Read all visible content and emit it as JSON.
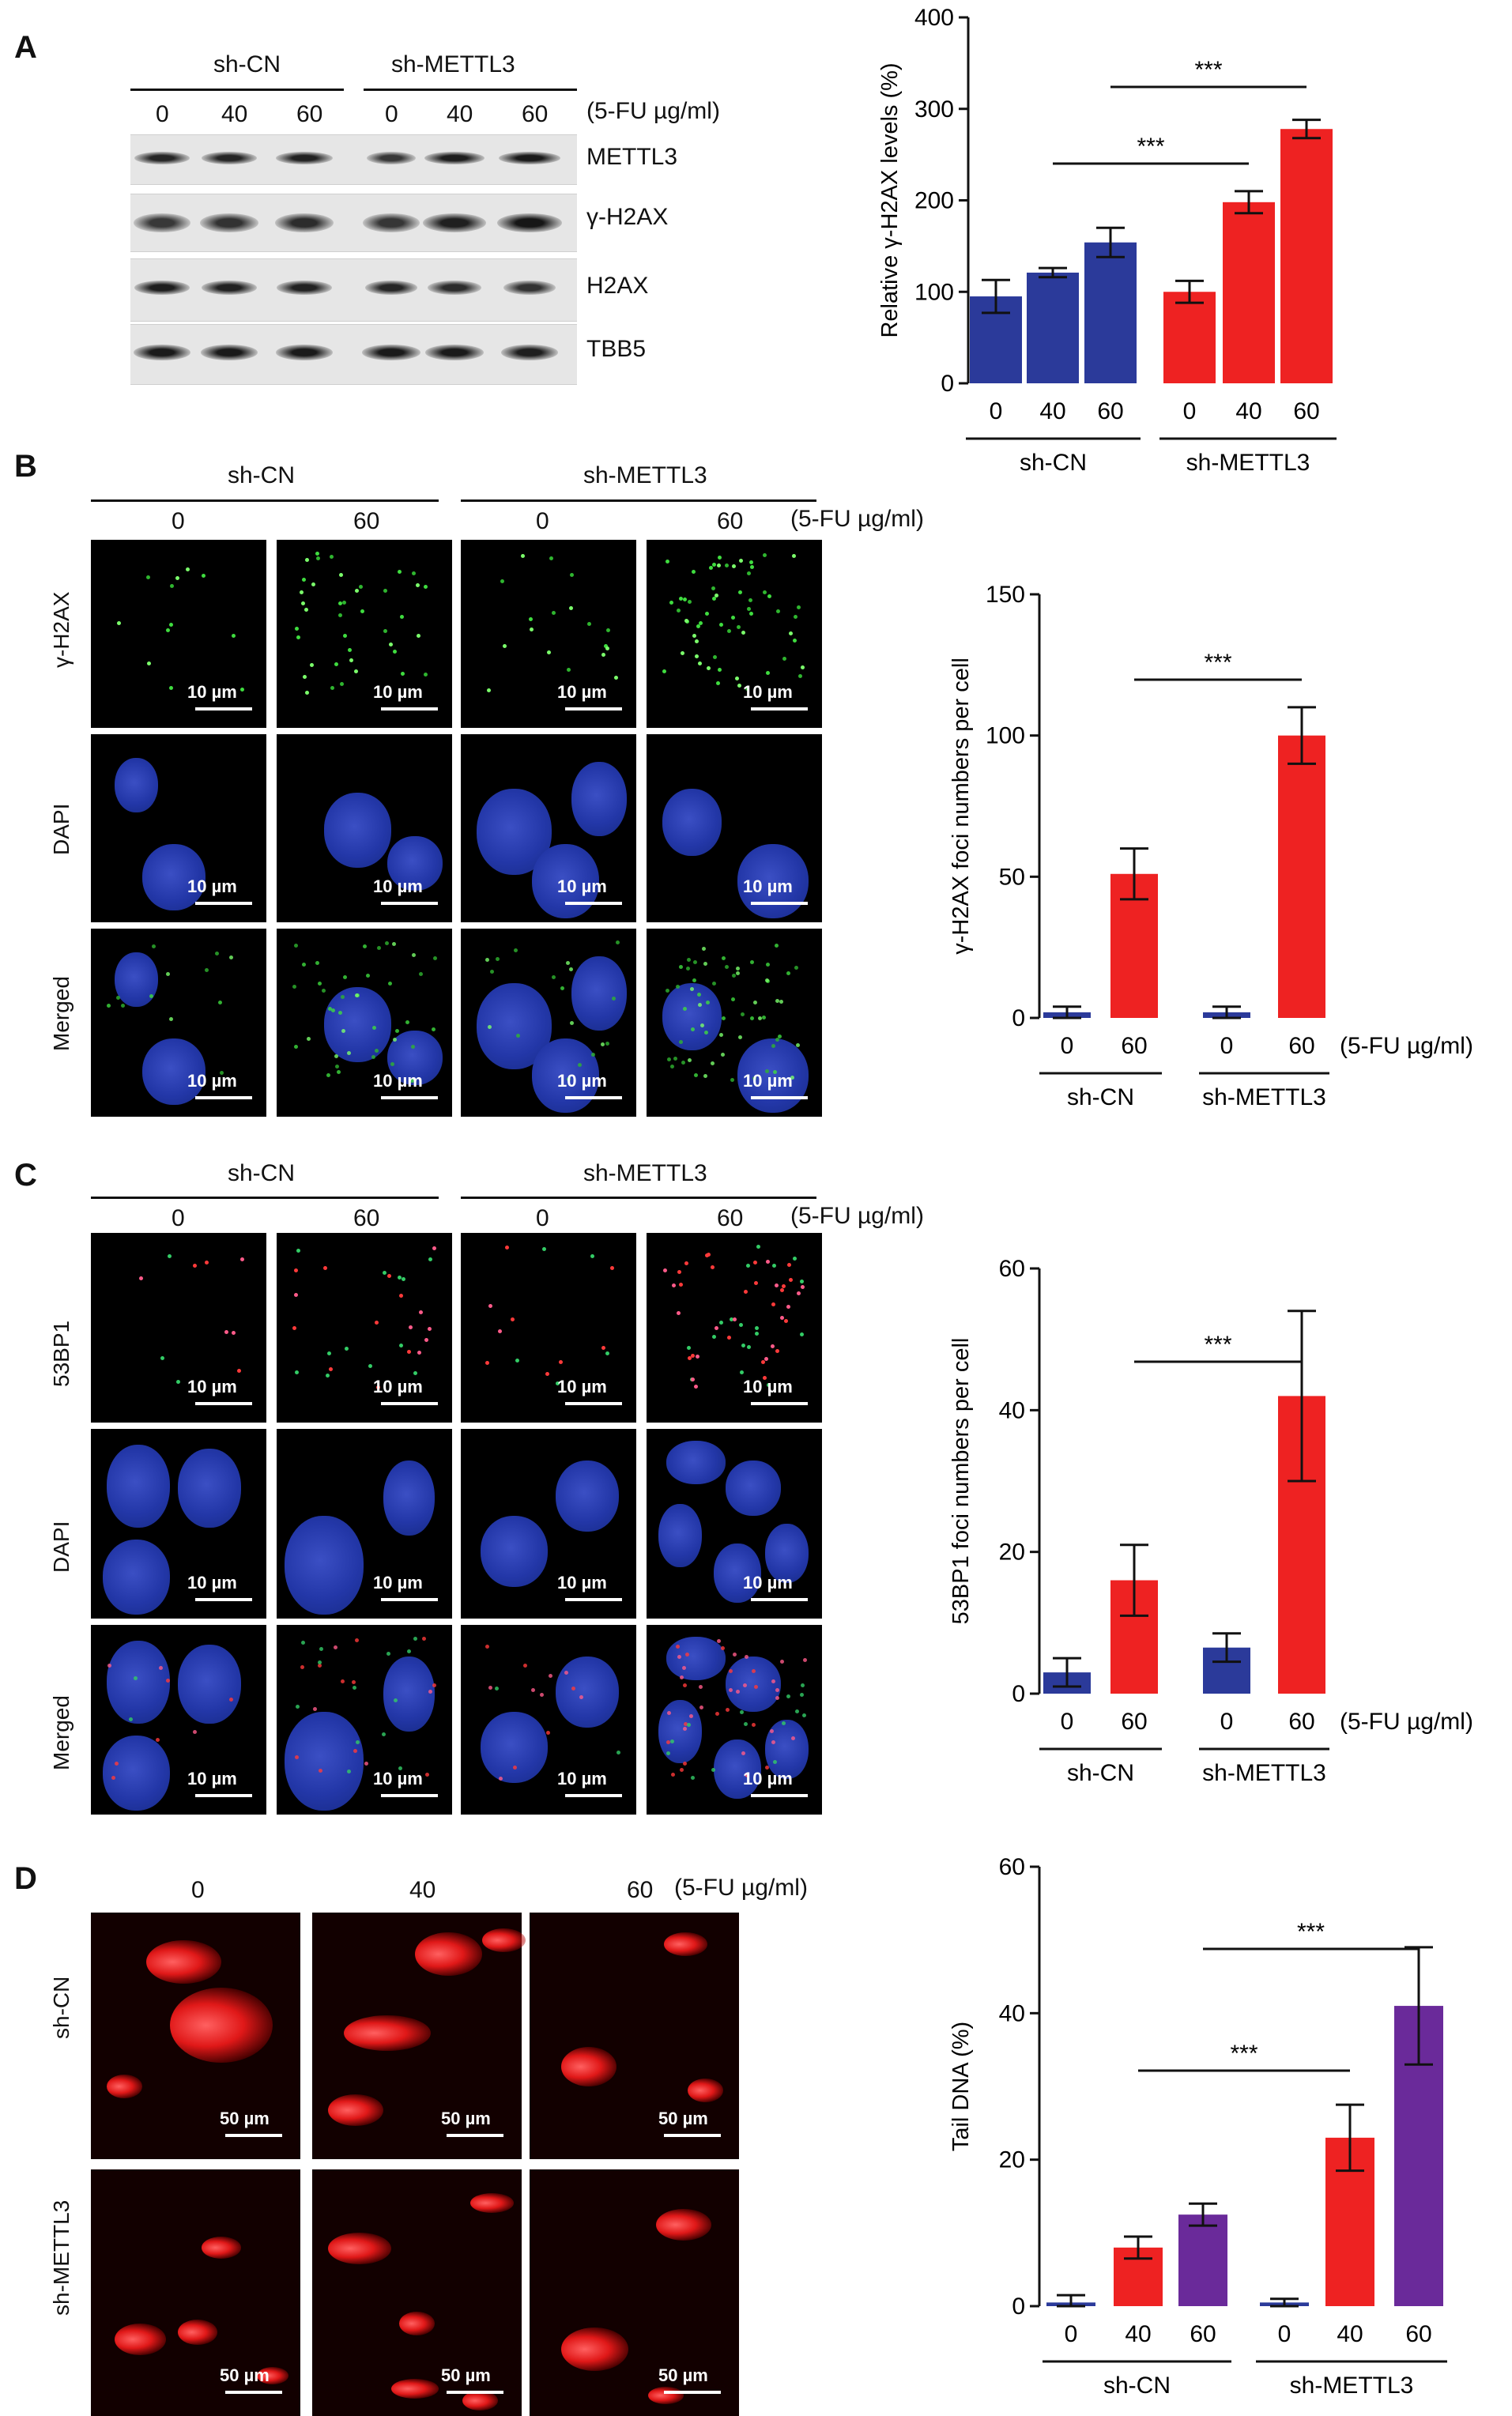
{
  "panels": {
    "A": {
      "letter": "A",
      "groups": [
        "sh-CN",
        "sh-METTL3"
      ],
      "doses": [
        "0",
        "40",
        "60",
        "0",
        "40",
        "60"
      ],
      "treatment_label": "(5-FU µg/ml)",
      "blot_labels": [
        "METTL3",
        "γ-H2AX",
        "H2AX",
        "TBB5"
      ]
    },
    "B": {
      "letter": "B",
      "groups": [
        "sh-CN",
        "sh-METTL3"
      ],
      "doses": [
        "0",
        "60",
        "0",
        "60"
      ],
      "treatment_label": "(5-FU µg/ml)",
      "row_labels": [
        "γ-H2AX",
        "DAPI",
        "Merged"
      ],
      "scale_label": "10 µm"
    },
    "C": {
      "letter": "C",
      "groups": [
        "sh-CN",
        "sh-METTL3"
      ],
      "doses": [
        "0",
        "60",
        "0",
        "60"
      ],
      "treatment_label": "(5-FU µg/ml)",
      "row_labels": [
        "53BP1",
        "DAPI",
        "Merged"
      ],
      "scale_label": "10 µm"
    },
    "D": {
      "letter": "D",
      "doses": [
        "0",
        "40",
        "60"
      ],
      "treatment_label": "(5-FU µg/ml)",
      "row_labels": [
        "sh-CN",
        "sh-METTL3"
      ],
      "scale_label": "50 µm"
    }
  },
  "chart_data": [
    {
      "type": "bar",
      "panel": "A",
      "categories": [
        "0",
        "40",
        "60",
        "0",
        "40",
        "60"
      ],
      "groups": [
        "sh-CN",
        "sh-METTL3"
      ],
      "values": [
        95,
        121,
        154,
        100,
        198,
        278
      ],
      "errors": [
        18,
        5,
        16,
        12,
        12,
        10
      ],
      "colors": [
        "#2b3a9a",
        "#2b3a9a",
        "#2b3a9a",
        "#ee2222",
        "#ee2222",
        "#ee2222"
      ],
      "ylabel": "Relative γ-H2AX levels (%)",
      "ylim": [
        0,
        400
      ],
      "yticks": [
        0,
        100,
        200,
        300,
        400
      ],
      "significance": [
        {
          "from": 1,
          "to": 4,
          "label": "***"
        },
        {
          "from": 2,
          "to": 5,
          "label": "***"
        }
      ]
    },
    {
      "type": "bar",
      "panel": "B",
      "categories": [
        "0",
        "60",
        "0",
        "60"
      ],
      "groups": [
        "sh-CN",
        "sh-METTL3"
      ],
      "values": [
        2,
        51,
        2,
        100
      ],
      "errors": [
        2,
        9,
        2,
        10
      ],
      "colors": [
        "#2b3a9a",
        "#ee2222",
        "#2b3a9a",
        "#ee2222"
      ],
      "ylabel": "γ-H2AX foci numbers per cell",
      "xlabel": "(5-FU µg/ml)",
      "ylim": [
        0,
        150
      ],
      "yticks": [
        0,
        50,
        100,
        150
      ],
      "significance": [
        {
          "from": 1,
          "to": 3,
          "label": "***"
        }
      ]
    },
    {
      "type": "bar",
      "panel": "C",
      "categories": [
        "0",
        "60",
        "0",
        "60"
      ],
      "groups": [
        "sh-CN",
        "sh-METTL3"
      ],
      "values": [
        3,
        16,
        6.5,
        42
      ],
      "errors": [
        2,
        5,
        2,
        12
      ],
      "colors": [
        "#2b3a9a",
        "#ee2222",
        "#2b3a9a",
        "#ee2222"
      ],
      "ylabel": "53BP1 foci numbers per cell",
      "xlabel": "(5-FU µg/ml)",
      "ylim": [
        0,
        60
      ],
      "yticks": [
        0,
        20,
        40,
        60
      ],
      "significance": [
        {
          "from": 1,
          "to": 3,
          "label": "***"
        }
      ]
    },
    {
      "type": "bar",
      "panel": "D",
      "categories": [
        "0",
        "40",
        "60",
        "0",
        "40",
        "60"
      ],
      "groups": [
        "sh-CN",
        "sh-METTL3"
      ],
      "values": [
        0.5,
        8,
        12.5,
        0.5,
        23,
        41
      ],
      "errors": [
        1,
        1.5,
        1.5,
        0.5,
        4.5,
        8
      ],
      "colors": [
        "#2b3a9a",
        "#ee2222",
        "#6a2a9a",
        "#2b3a9a",
        "#ee2222",
        "#6a2a9a"
      ],
      "ylabel": "Tail DNA (%)",
      "ylim": [
        0,
        60
      ],
      "yticks": [
        0,
        20,
        40,
        60
      ],
      "significance": [
        {
          "from": 1,
          "to": 4,
          "label": "***"
        },
        {
          "from": 2,
          "to": 5,
          "label": "***"
        }
      ]
    }
  ]
}
